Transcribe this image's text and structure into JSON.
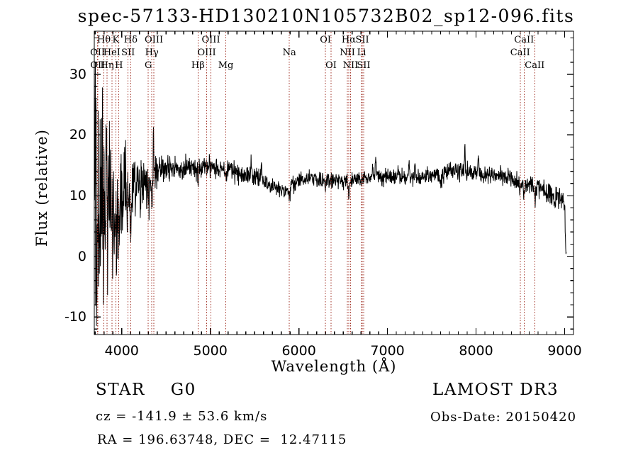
{
  "title": "spec-57133-HD130210N105732B02_sp12-096.fits",
  "chart_data": {
    "type": "line",
    "title": "spec-57133-HD130210N105732B02_sp12-096.fits",
    "xlabel": "Wavelength (Å)",
    "ylabel": "Flux (relative)",
    "xlim": [
      3690,
      9100
    ],
    "ylim": [
      -12.9,
      37.1
    ],
    "x_ticks": [
      4000,
      5000,
      6000,
      7000,
      8000,
      9000
    ],
    "y_ticks": [
      -10,
      0,
      10,
      20,
      30
    ],
    "x_minor_step": 100,
    "y_minor_step": 2,
    "grid": false,
    "legend": "none",
    "line_color": "#000000",
    "marker_color": "#a23327",
    "spectral_lines": [
      {
        "label": "OII",
        "wavelength": 3727,
        "row": 2
      },
      {
        "label": "OII",
        "wavelength": 3729,
        "row": 3
      },
      {
        "label": "Hθ",
        "wavelength": 3798,
        "row": 1
      },
      {
        "label": "Hη",
        "wavelength": 3835,
        "row": 3
      },
      {
        "label": "HeI",
        "wavelength": 3889,
        "row": 2
      },
      {
        "label": "K",
        "wavelength": 3933,
        "row": 1
      },
      {
        "label": "H",
        "wavelength": 3968,
        "row": 3
      },
      {
        "label": "SII",
        "wavelength": 4072,
        "row": 2
      },
      {
        "label": "Hδ",
        "wavelength": 4101,
        "row": 1
      },
      {
        "label": "G",
        "wavelength": 4300,
        "row": 3
      },
      {
        "label": "Hγ",
        "wavelength": 4340,
        "row": 2
      },
      {
        "label": "OIII",
        "wavelength": 4363,
        "row": 1
      },
      {
        "label": "Hβ",
        "wavelength": 4861,
        "row": 3
      },
      {
        "label": "OIII",
        "wavelength": 4959,
        "row": 2
      },
      {
        "label": "OIII",
        "wavelength": 5007,
        "row": 1
      },
      {
        "label": "Mg",
        "wavelength": 5175,
        "row": 3
      },
      {
        "label": "Na",
        "wavelength": 5892,
        "row": 2
      },
      {
        "label": "OI",
        "wavelength": 6300,
        "row": 1
      },
      {
        "label": "OI",
        "wavelength": 6363,
        "row": 3
      },
      {
        "label": "NII",
        "wavelength": 6548,
        "row": 2
      },
      {
        "label": "Hα",
        "wavelength": 6563,
        "row": 1
      },
      {
        "label": "NII",
        "wavelength": 6583,
        "row": 3
      },
      {
        "label": "Li",
        "wavelength": 6707,
        "row": 2
      },
      {
        "label": "SII",
        "wavelength": 6716,
        "row": 1
      },
      {
        "label": "SII",
        "wavelength": 6731,
        "row": 3
      },
      {
        "label": "CaII",
        "wavelength": 8498,
        "row": 2
      },
      {
        "label": "CaII",
        "wavelength": 8542,
        "row": 1
      },
      {
        "label": "CaII",
        "wavelength": 8662,
        "row": 3
      }
    ],
    "continuum": [
      [
        3690,
        4
      ],
      [
        3710,
        5
      ],
      [
        3740,
        6
      ],
      [
        3780,
        7.5
      ],
      [
        3820,
        9
      ],
      [
        3860,
        9.5
      ],
      [
        3900,
        9.5
      ],
      [
        3950,
        10
      ],
      [
        4000,
        10
      ],
      [
        4050,
        10.2
      ],
      [
        4100,
        10.5
      ],
      [
        4150,
        10.8
      ],
      [
        4200,
        11.2
      ],
      [
        4250,
        11.8
      ],
      [
        4300,
        12.5
      ],
      [
        4350,
        13.2
      ],
      [
        4400,
        14
      ],
      [
        4450,
        14.3
      ],
      [
        4500,
        14.5
      ],
      [
        4600,
        14.4
      ],
      [
        4700,
        14.5
      ],
      [
        4800,
        14.6
      ],
      [
        4900,
        15
      ],
      [
        5000,
        15
      ],
      [
        5100,
        14.6
      ],
      [
        5200,
        14.8
      ],
      [
        5300,
        13.8
      ],
      [
        5400,
        13.2
      ],
      [
        5500,
        13.2
      ],
      [
        5600,
        12.4
      ],
      [
        5700,
        11.4
      ],
      [
        5800,
        11
      ],
      [
        5900,
        11.6
      ],
      [
        6000,
        12.4
      ],
      [
        6100,
        12.8
      ],
      [
        6200,
        12.6
      ],
      [
        6300,
        12.4
      ],
      [
        6400,
        12.6
      ],
      [
        6500,
        12.4
      ],
      [
        6600,
        12.4
      ],
      [
        6700,
        12.8
      ],
      [
        6800,
        13
      ],
      [
        6900,
        13
      ],
      [
        7000,
        12.9
      ],
      [
        7100,
        13
      ],
      [
        7200,
        13.1
      ],
      [
        7300,
        13
      ],
      [
        7400,
        13.2
      ],
      [
        7500,
        13.4
      ],
      [
        7600,
        13.6
      ],
      [
        7700,
        13.9
      ],
      [
        7800,
        14.1
      ],
      [
        7900,
        14
      ],
      [
        8000,
        13.8
      ],
      [
        8100,
        13.5
      ],
      [
        8200,
        13.3
      ],
      [
        8300,
        13.2
      ],
      [
        8400,
        12.9
      ],
      [
        8500,
        12.2
      ],
      [
        8600,
        11.8
      ],
      [
        8700,
        11.4
      ],
      [
        8800,
        10.6
      ],
      [
        8900,
        9.8
      ],
      [
        8960,
        9.5
      ],
      [
        9000,
        9.2
      ],
      [
        9006,
        5
      ],
      [
        9012,
        0.8
      ],
      [
        9020,
        0.5
      ]
    ],
    "noise_amp": [
      [
        3690,
        27
      ],
      [
        3710,
        24
      ],
      [
        3740,
        19
      ],
      [
        3780,
        16
      ],
      [
        3820,
        13
      ],
      [
        3860,
        11
      ],
      [
        3900,
        9.5
      ],
      [
        3950,
        8.5
      ],
      [
        4000,
        7.5
      ],
      [
        4060,
        6.5
      ],
      [
        4120,
        5.5
      ],
      [
        4200,
        4.5
      ],
      [
        4300,
        3.6
      ],
      [
        4400,
        2.8
      ],
      [
        4500,
        2.0
      ],
      [
        4600,
        1.7
      ],
      [
        4700,
        1.6
      ],
      [
        4800,
        1.6
      ],
      [
        4900,
        1.7
      ],
      [
        5000,
        1.5
      ],
      [
        5100,
        1.5
      ],
      [
        5300,
        1.5
      ],
      [
        5500,
        1.4
      ],
      [
        5700,
        1.5
      ],
      [
        5900,
        1.3
      ],
      [
        6100,
        1.2
      ],
      [
        6300,
        1.2
      ],
      [
        6500,
        1.2
      ],
      [
        6700,
        1.3
      ],
      [
        6900,
        1.3
      ],
      [
        7100,
        1.2
      ],
      [
        7300,
        1.2
      ],
      [
        7500,
        1.2
      ],
      [
        7700,
        1.4
      ],
      [
        7900,
        1.4
      ],
      [
        8100,
        1.2
      ],
      [
        8300,
        1.2
      ],
      [
        8500,
        1.3
      ],
      [
        8700,
        1.5
      ],
      [
        8850,
        1.7
      ],
      [
        8950,
        1.8
      ],
      [
        9000,
        1.5
      ],
      [
        9010,
        0.6
      ],
      [
        9020,
        0.4
      ]
    ],
    "features": [
      [
        3933,
        -7,
        12
      ],
      [
        3968,
        -7,
        12
      ],
      [
        4046,
        4,
        4
      ],
      [
        4101,
        -5,
        9
      ],
      [
        4300,
        -2.5,
        15
      ],
      [
        4340,
        -3.5,
        8
      ],
      [
        4358,
        7,
        4
      ],
      [
        4861,
        -2.5,
        8
      ],
      [
        5175,
        -1.6,
        20
      ],
      [
        5460,
        2.2,
        4
      ],
      [
        5577,
        2.5,
        4
      ],
      [
        5892,
        -1.8,
        12
      ],
      [
        6300,
        -1,
        5
      ],
      [
        6563,
        -2.6,
        8
      ],
      [
        6830,
        1.5,
        5
      ],
      [
        6867,
        3.2,
        6
      ],
      [
        7120,
        2,
        4
      ],
      [
        7245,
        2.2,
        5
      ],
      [
        7310,
        2,
        4
      ],
      [
        7600,
        -1.6,
        15
      ],
      [
        7873,
        2.8,
        5
      ],
      [
        8025,
        2.2,
        5
      ],
      [
        8498,
        -1.6,
        8
      ],
      [
        8542,
        -2,
        9
      ],
      [
        8662,
        -1.8,
        9
      ],
      [
        8767,
        1.5,
        4
      ],
      [
        8888,
        -1.5,
        8
      ]
    ],
    "data_start": 3690,
    "data_end": 9020,
    "sample_step": 3,
    "seed": 12345
  },
  "footer": {
    "object_class": "STAR",
    "subclass": "G0",
    "survey": "LAMOST DR3",
    "cz_text": "cz = -141.9 ± 53.6 km/s",
    "obs_date_text": "Obs-Date: 20150420",
    "ra_dec_text": "RA = 196.63748, DEC =  12.47115"
  }
}
